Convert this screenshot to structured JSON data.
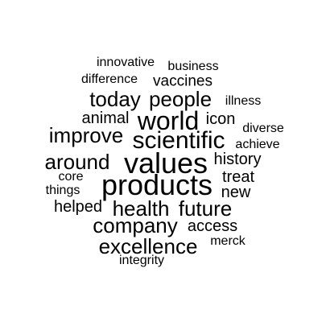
{
  "text_color": "#000000",
  "background_color": "#ffffff",
  "words": [
    {
      "text": "innovative"
    },
    {
      "text": "business"
    },
    {
      "text": "difference"
    },
    {
      "text": "vaccines"
    },
    {
      "text": "today"
    },
    {
      "text": "people"
    },
    {
      "text": "illness"
    },
    {
      "text": "animal"
    },
    {
      "text": "world"
    },
    {
      "text": "icon"
    },
    {
      "text": "improve"
    },
    {
      "text": "scientific"
    },
    {
      "text": "diverse"
    },
    {
      "text": "achieve"
    },
    {
      "text": "around"
    },
    {
      "text": "values"
    },
    {
      "text": "history"
    },
    {
      "text": "core"
    },
    {
      "text": "treat"
    },
    {
      "text": "things"
    },
    {
      "text": "products"
    },
    {
      "text": "new"
    },
    {
      "text": "helped"
    },
    {
      "text": "health"
    },
    {
      "text": "future"
    },
    {
      "text": "company"
    },
    {
      "text": "access"
    },
    {
      "text": "excellence"
    },
    {
      "text": "merck"
    },
    {
      "text": "integrity"
    }
  ]
}
